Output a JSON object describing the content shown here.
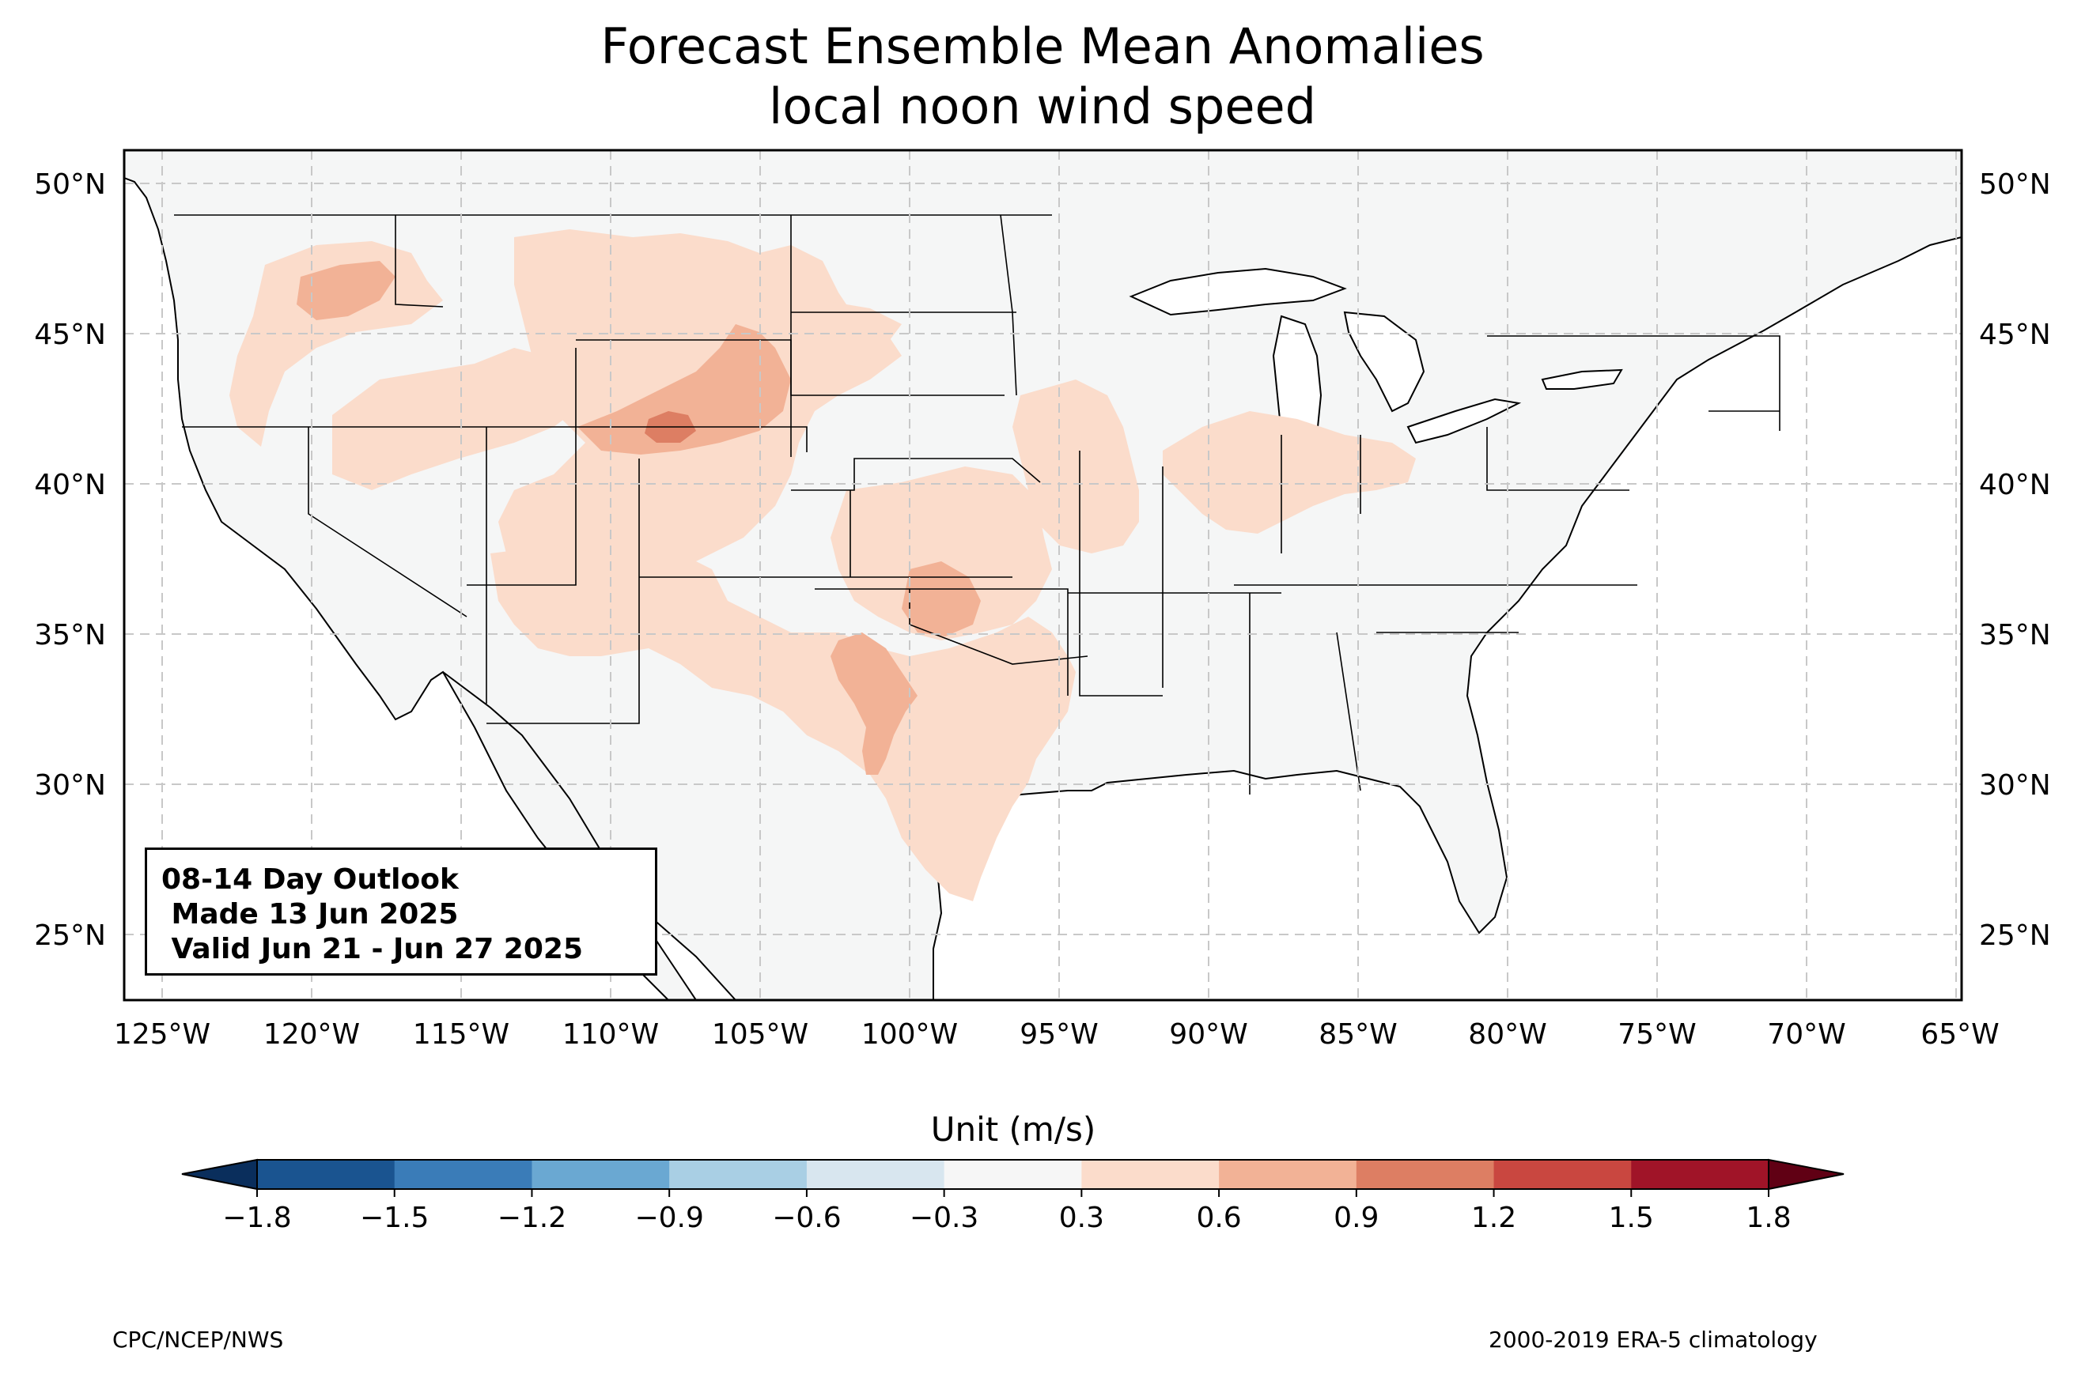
{
  "title_line1": "Forecast Ensemble Mean Anomalies",
  "title_line2": "local noon wind speed",
  "outlook": {
    "line1": "08-14 Day Outlook",
    "line2": " Made 13 Jun 2025",
    "line3": " Valid Jun 21 - Jun 27 2025"
  },
  "lon_ticks": [
    "125°W",
    "120°W",
    "115°W",
    "110°W",
    "105°W",
    "100°W",
    "95°W",
    "90°W",
    "85°W",
    "80°W",
    "75°W",
    "70°W",
    "65°W"
  ],
  "lat_ticks": [
    "50°N",
    "45°N",
    "40°N",
    "35°N",
    "30°N",
    "25°N"
  ],
  "colorbar": {
    "title": "Unit (m/s)",
    "tick_labels": [
      "−1.8",
      "−1.5",
      "−1.2",
      "−0.9",
      "−0.6",
      "−0.3",
      "0.3",
      "0.6",
      "0.9",
      "1.2",
      "1.5",
      "1.8"
    ],
    "colors": [
      "#1a5490",
      "#3a7cb8",
      "#6aa8d2",
      "#a9cfe4",
      "#d8e6ef",
      "#f6f6f6",
      "#fbdccb",
      "#f2b296",
      "#dd7e63",
      "#c94740",
      "#a01428"
    ],
    "under_color": "#0a2e5c",
    "over_color": "#600014"
  },
  "colors": {
    "land": "#f5f6f6",
    "ocean": "#ffffff",
    "anomaly_0_3": "#fbdccb",
    "anomaly_0_6": "#f2b296",
    "anomaly_0_9": "#dd7e63"
  },
  "footer_left": "CPC/NCEP/NWS",
  "footer_right": "2000-2019 ERA-5 climatology"
}
